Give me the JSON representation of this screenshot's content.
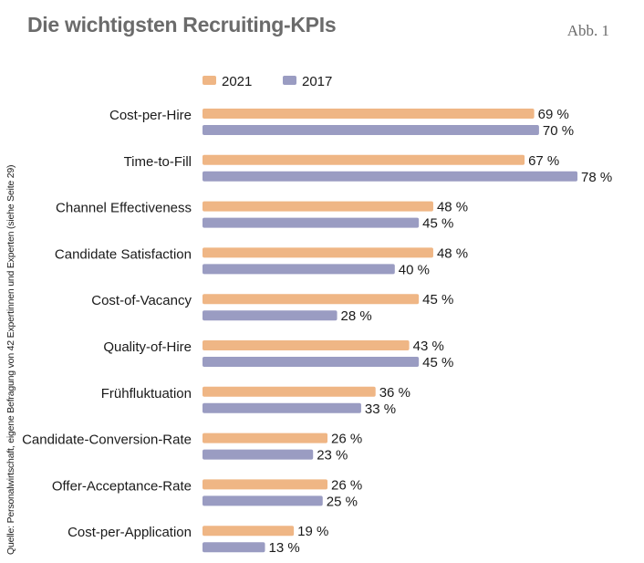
{
  "header": {
    "title": "Die wichtigsten Recruiting-KPIs",
    "figure_label": "Abb. 1"
  },
  "source_note": "Quelle: Personalwirtschaft, eigene Befragung von 42 Expertinnen und Experten (siehe Seite 29)",
  "chart_data": {
    "type": "bar",
    "orientation": "horizontal",
    "legend_position": "top-left",
    "grid": false,
    "value_suffix": " %",
    "xlim": [
      0,
      100
    ],
    "categories": [
      "Cost-per-Hire",
      "Time-to-Fill",
      "Channel Effectiveness",
      "Candidate Satisfaction",
      "Cost-of-Vacancy",
      "Quality-of-Hire",
      "Frühfluktuation",
      "Candidate-Conversion-Rate",
      "Offer-Acceptance-Rate",
      "Cost-per-Application"
    ],
    "series": [
      {
        "name": "2021",
        "color": "#efb685",
        "values": [
          69,
          67,
          48,
          48,
          45,
          43,
          36,
          26,
          26,
          19
        ]
      },
      {
        "name": "2017",
        "color": "#9a9cc2",
        "values": [
          70,
          78,
          45,
          40,
          28,
          45,
          33,
          23,
          25,
          13
        ]
      }
    ]
  }
}
